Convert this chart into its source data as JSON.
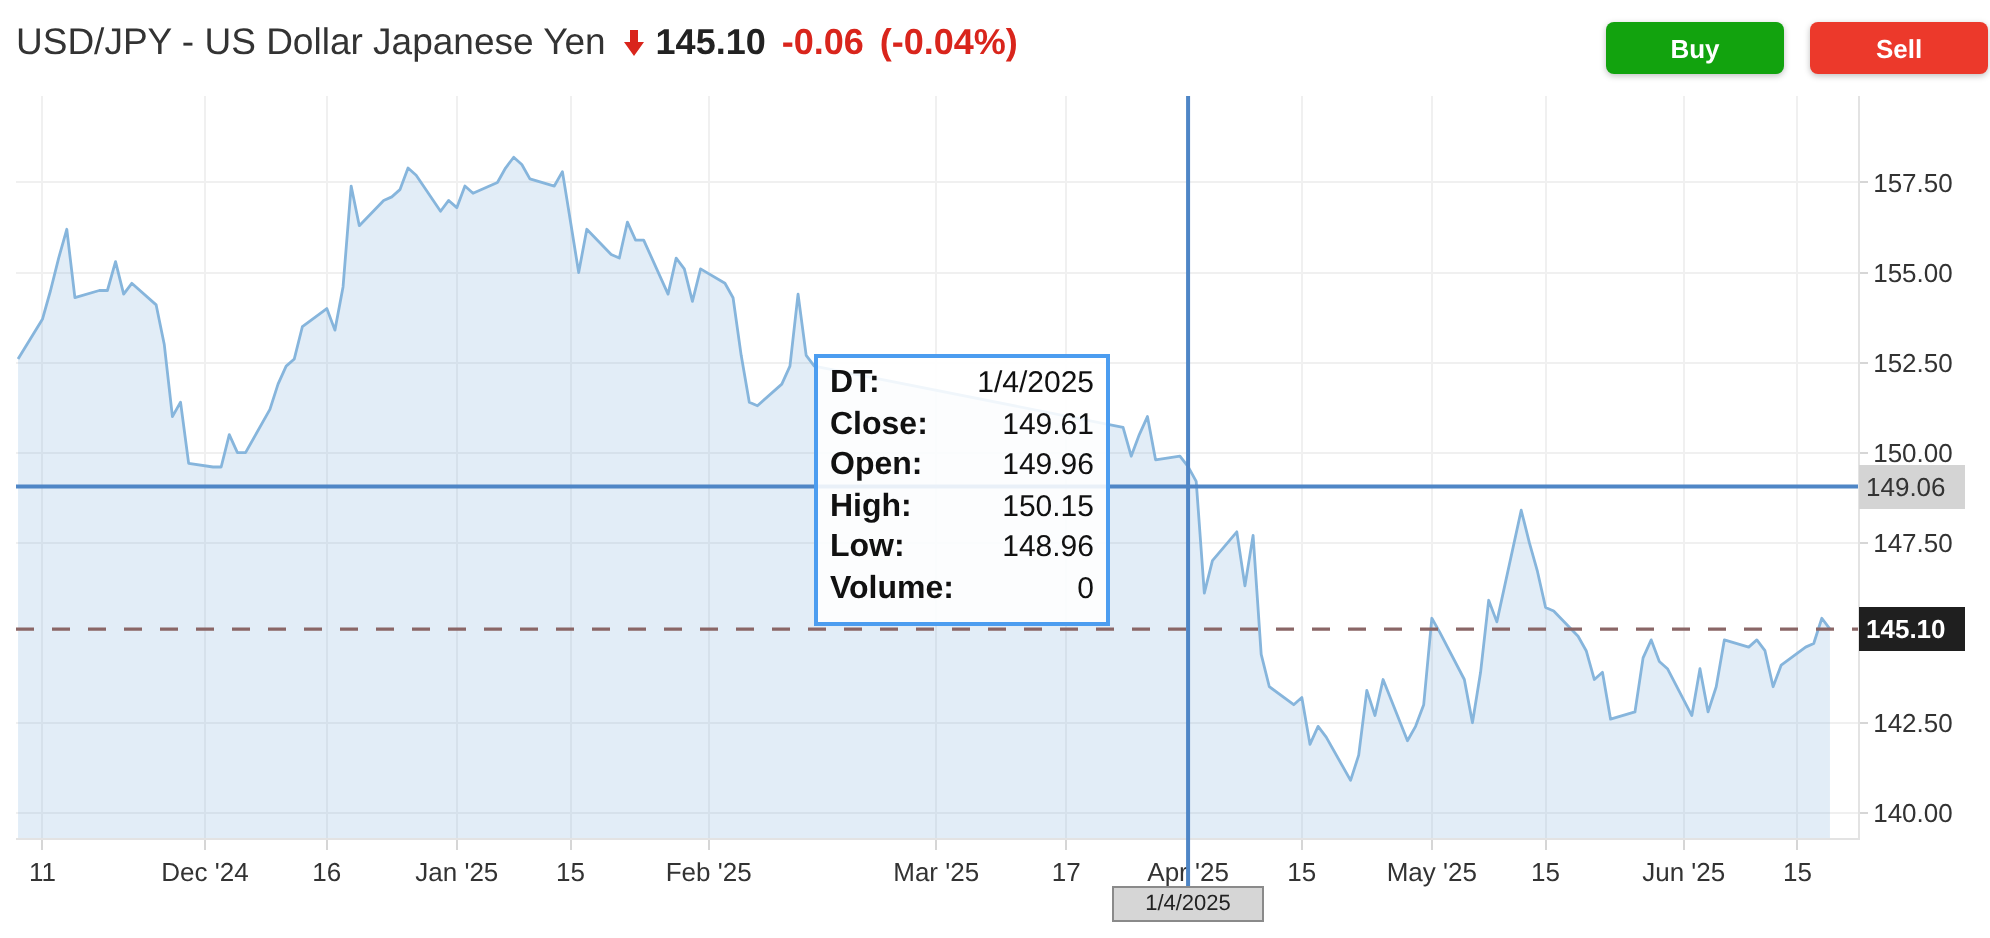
{
  "chart_data": {
    "type": "area",
    "title": "USD/JPY - US Dollar Japanese Yen",
    "annotations": [
      "145.10",
      "-0.06 (-0.04%)",
      "Buy",
      "Sell",
      "DT: 1/4/2025",
      "Close: 149.61",
      "Open: 149.96",
      "High: 150.15",
      "Low: 148.96",
      "Volume: 0"
    ],
    "x": [
      "2024-11-08",
      "2024-11-11",
      "2024-11-12",
      "2024-11-13",
      "2024-11-14",
      "2024-11-15",
      "2024-11-18",
      "2024-11-19",
      "2024-11-20",
      "2024-11-21",
      "2024-11-22",
      "2024-11-25",
      "2024-11-26",
      "2024-11-27",
      "2024-11-28",
      "2024-11-29",
      "2024-12-02",
      "2024-12-03",
      "2024-12-04",
      "2024-12-05",
      "2024-12-06",
      "2024-12-09",
      "2024-12-10",
      "2024-12-11",
      "2024-12-12",
      "2024-12-13",
      "2024-12-16",
      "2024-12-17",
      "2024-12-18",
      "2024-12-19",
      "2024-12-20",
      "2024-12-23",
      "2024-12-24",
      "2024-12-25",
      "2024-12-26",
      "2024-12-27",
      "2024-12-30",
      "2024-12-31",
      "2025-01-01",
      "2025-01-02",
      "2025-01-03",
      "2025-01-06",
      "2025-01-07",
      "2025-01-08",
      "2025-01-09",
      "2025-01-10",
      "2025-01-13",
      "2025-01-14",
      "2025-01-15",
      "2025-01-16",
      "2025-01-17",
      "2025-01-20",
      "2025-01-21",
      "2025-01-22",
      "2025-01-23",
      "2025-01-24",
      "2025-01-27",
      "2025-01-28",
      "2025-01-29",
      "2025-01-30",
      "2025-01-31",
      "2025-02-03",
      "2025-02-04",
      "2025-02-05",
      "2025-02-06",
      "2025-02-07",
      "2025-02-10",
      "2025-02-11",
      "2025-02-12",
      "2025-02-13",
      "2025-02-14",
      "2025-02-17",
      "2025-02-18",
      "2025-02-19",
      "2025-02-20",
      "2025-02-21",
      "2025-02-24",
      "2025-02-25",
      "2025-02-26",
      "2025-02-27",
      "2025-02-28",
      "2025-03-03",
      "2025-03-04",
      "2025-03-05",
      "2025-03-06",
      "2025-03-07",
      "2025-03-10",
      "2025-03-11",
      "2025-03-12",
      "2025-03-13",
      "2025-03-14",
      "2025-03-17",
      "2025-03-18",
      "2025-03-19",
      "2025-03-20",
      "2025-03-21",
      "2025-03-24",
      "2025-03-25",
      "2025-03-26",
      "2025-03-27",
      "2025-03-28",
      "2025-03-31",
      "2025-04-01",
      "2025-04-02",
      "2025-04-03",
      "2025-04-04",
      "2025-04-07",
      "2025-04-08",
      "2025-04-09",
      "2025-04-10",
      "2025-04-11",
      "2025-04-14",
      "2025-04-15",
      "2025-04-16",
      "2025-04-17",
      "2025-04-18",
      "2025-04-21",
      "2025-04-22",
      "2025-04-23",
      "2025-04-24",
      "2025-04-25",
      "2025-04-28",
      "2025-04-29",
      "2025-04-30",
      "2025-05-01",
      "2025-05-02",
      "2025-05-05",
      "2025-05-06",
      "2025-05-07",
      "2025-05-08",
      "2025-05-09",
      "2025-05-12",
      "2025-05-13",
      "2025-05-14",
      "2025-05-15",
      "2025-05-16",
      "2025-05-19",
      "2025-05-20",
      "2025-05-21",
      "2025-05-22",
      "2025-05-23",
      "2025-05-26",
      "2025-05-27",
      "2025-05-28",
      "2025-05-29",
      "2025-05-30",
      "2025-06-02",
      "2025-06-03",
      "2025-06-04",
      "2025-06-05",
      "2025-06-06",
      "2025-06-09",
      "2025-06-10",
      "2025-06-11",
      "2025-06-12",
      "2025-06-13",
      "2025-06-16",
      "2025-06-17",
      "2025-06-18",
      "2025-06-19"
    ],
    "series": [
      {
        "color": "#86b5dc",
        "values": [
          152.6,
          153.7,
          154.5,
          155.4,
          156.2,
          154.3,
          154.5,
          154.5,
          155.3,
          154.4,
          154.7,
          154.1,
          153.0,
          151.0,
          151.4,
          149.7,
          149.6,
          149.6,
          150.5,
          150.0,
          150.0,
          151.2,
          151.9,
          152.4,
          152.6,
          153.5,
          154.0,
          153.4,
          154.6,
          157.4,
          156.3,
          157.0,
          157.1,
          157.3,
          157.9,
          157.7,
          156.7,
          157.0,
          156.8,
          157.4,
          157.2,
          157.5,
          157.9,
          158.2,
          158.0,
          157.6,
          157.4,
          157.8,
          156.4,
          155.0,
          156.2,
          155.5,
          155.4,
          156.4,
          155.9,
          155.9,
          154.4,
          155.4,
          155.1,
          154.2,
          155.1,
          154.7,
          154.3,
          152.7,
          151.4,
          151.3,
          151.9,
          152.4,
          154.4,
          152.7,
          152.4,
          null,
          null,
          null,
          null,
          null,
          null,
          null,
          null,
          null,
          null,
          null,
          null,
          null,
          null,
          null,
          null,
          null,
          null,
          null,
          null,
          null,
          null,
          null,
          null,
          null,
          150.7,
          149.9,
          150.5,
          151.0,
          149.8,
          149.9,
          149.61,
          149.2,
          146.1,
          147.0,
          147.8,
          146.3,
          147.7,
          144.4,
          143.5,
          143.0,
          143.2,
          141.9,
          142.4,
          142.1,
          140.9,
          141.6,
          143.4,
          142.7,
          143.7,
          142.0,
          142.4,
          143.0,
          145.4,
          145.0,
          143.7,
          142.5,
          143.9,
          145.9,
          145.3,
          148.4,
          147.5,
          146.7,
          145.7,
          145.6,
          144.9,
          144.5,
          143.7,
          143.9,
          142.6,
          142.8,
          144.3,
          144.8,
          144.2,
          144.0,
          142.7,
          144.0,
          142.8,
          143.5,
          144.8,
          144.6,
          144.8,
          144.5,
          143.5,
          144.1,
          144.6,
          144.7,
          145.4,
          145.1
        ]
      }
    ],
    "xlim": [
      "2024-11-07T18:00",
      "2025-06-22T10:48"
    ],
    "xticks": [
      {
        "value": "2024-11-11",
        "label": "11"
      },
      {
        "value": "2024-12-01",
        "label": "Dec '24"
      },
      {
        "value": "2024-12-16",
        "label": "16"
      },
      {
        "value": "2025-01-01",
        "label": "Jan '25"
      },
      {
        "value": "2025-01-15",
        "label": "15"
      },
      {
        "value": "2025-02-01",
        "label": "Feb '25"
      },
      {
        "value": "2025-03-01",
        "label": "Mar '25"
      },
      {
        "value": "2025-03-17",
        "label": "17"
      },
      {
        "value": "2025-04-01",
        "label": "Apr '25"
      },
      {
        "value": "2025-04-15",
        "label": "15"
      },
      {
        "value": "2025-05-01",
        "label": "May '25"
      },
      {
        "value": "2025-05-15",
        "label": "15"
      },
      {
        "value": "2025-06-01",
        "label": "Jun '25"
      },
      {
        "value": "2025-06-15",
        "label": "15"
      }
    ],
    "ylim": [
      139.3,
      159.9
    ],
    "yticks": [
      {
        "value": 140,
        "label": "140.00"
      },
      {
        "value": 142.5,
        "label": "142.50"
      },
      {
        "value": 147.5,
        "label": "147.50"
      },
      {
        "value": 150,
        "label": "150.00"
      },
      {
        "value": 152.5,
        "label": "152.50"
      },
      {
        "value": 155,
        "label": "155.00"
      },
      {
        "value": 157.5,
        "label": "157.50"
      }
    ],
    "grid": true,
    "ref_lines": [
      {
        "axis": "x",
        "value": "2025-04-01",
        "label": "1/4/2025",
        "color": "#4f86c6"
      },
      {
        "axis": "y",
        "value": 149.06,
        "label": "149.06",
        "color": "#4f86c6"
      },
      {
        "axis": "y",
        "value": 145.1,
        "label": "145.10",
        "color": "#8a6666",
        "line_style": "dashed"
      }
    ]
  }
}
